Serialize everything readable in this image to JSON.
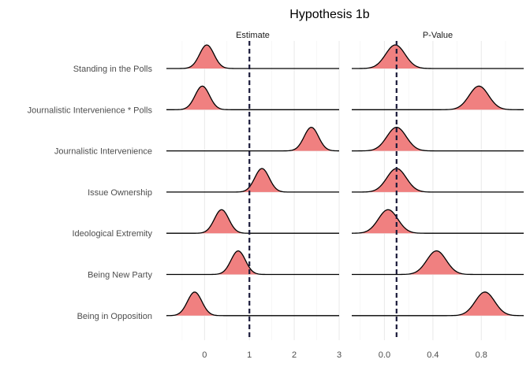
{
  "chart_data": {
    "type": "ridgeline",
    "title": "Hypothesis 1b",
    "categories": [
      "Standing in the Polls",
      "Journalistic Intervenience * Polls",
      "Journalistic Intervenience",
      "Issue Ownership",
      "Ideological Extremity",
      "Being New Party",
      "Being in Opposition"
    ],
    "fill_color": "#f08080",
    "reference_line_style": "dashed",
    "reference_line_color": "#1a1a3a",
    "grid": true,
    "panels": [
      {
        "strip": "Estimate",
        "xlim": [
          -0.85,
          3.0
        ],
        "xticks": [
          0,
          1,
          2,
          3
        ],
        "xtick_labels": [
          "0",
          "1",
          "2",
          "3"
        ],
        "reference_line": 1.0,
        "peaks": [
          0.05,
          -0.05,
          2.38,
          1.28,
          0.38,
          0.75,
          -0.22
        ],
        "sd": 0.16
      },
      {
        "strip": "P-Value",
        "xlim": [
          -0.27,
          1.15
        ],
        "xticks": [
          0.0,
          0.4,
          0.8
        ],
        "xtick_labels": [
          "0.0",
          "0.4",
          "0.8"
        ],
        "reference_line": 0.1,
        "peaks": [
          0.09,
          0.78,
          0.1,
          0.1,
          0.03,
          0.43,
          0.83
        ],
        "sd": 0.08
      }
    ]
  }
}
